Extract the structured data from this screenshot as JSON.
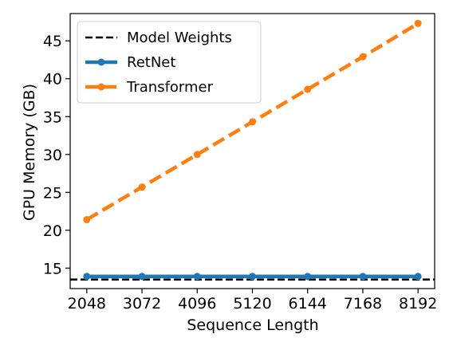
{
  "chart_data": {
    "type": "line",
    "title": "",
    "xlabel": "Sequence Length",
    "ylabel": "GPU Memory (GB)",
    "x": [
      2048,
      3072,
      4096,
      5120,
      6144,
      7168,
      8192
    ],
    "x_tick_labels": [
      "2048",
      "3072",
      "4096",
      "5120",
      "6144",
      "7168",
      "8192"
    ],
    "y_ticks": [
      15,
      20,
      25,
      30,
      35,
      40,
      45
    ],
    "y_tick_labels": [
      "15",
      "20",
      "25",
      "30",
      "35",
      "40",
      "45"
    ],
    "xlim": [
      1740,
      8500
    ],
    "ylim": [
      12.3,
      48.6
    ],
    "grid": false,
    "legend_position": "top-left",
    "reference_line": {
      "name": "Model Weights",
      "y": 13.5,
      "color": "#000000",
      "style": "dashed"
    },
    "series": [
      {
        "name": "RetNet",
        "color": "#1f77b4",
        "style": "solid",
        "marker": "circle",
        "values": [
          13.9,
          13.9,
          13.9,
          13.9,
          13.9,
          13.9,
          13.9
        ]
      },
      {
        "name": "Transformer",
        "color": "#ff7f0e",
        "style": "dashed",
        "marker": "circle",
        "values": [
          21.4,
          25.7,
          30.0,
          34.3,
          38.6,
          42.9,
          47.3
        ]
      }
    ]
  }
}
